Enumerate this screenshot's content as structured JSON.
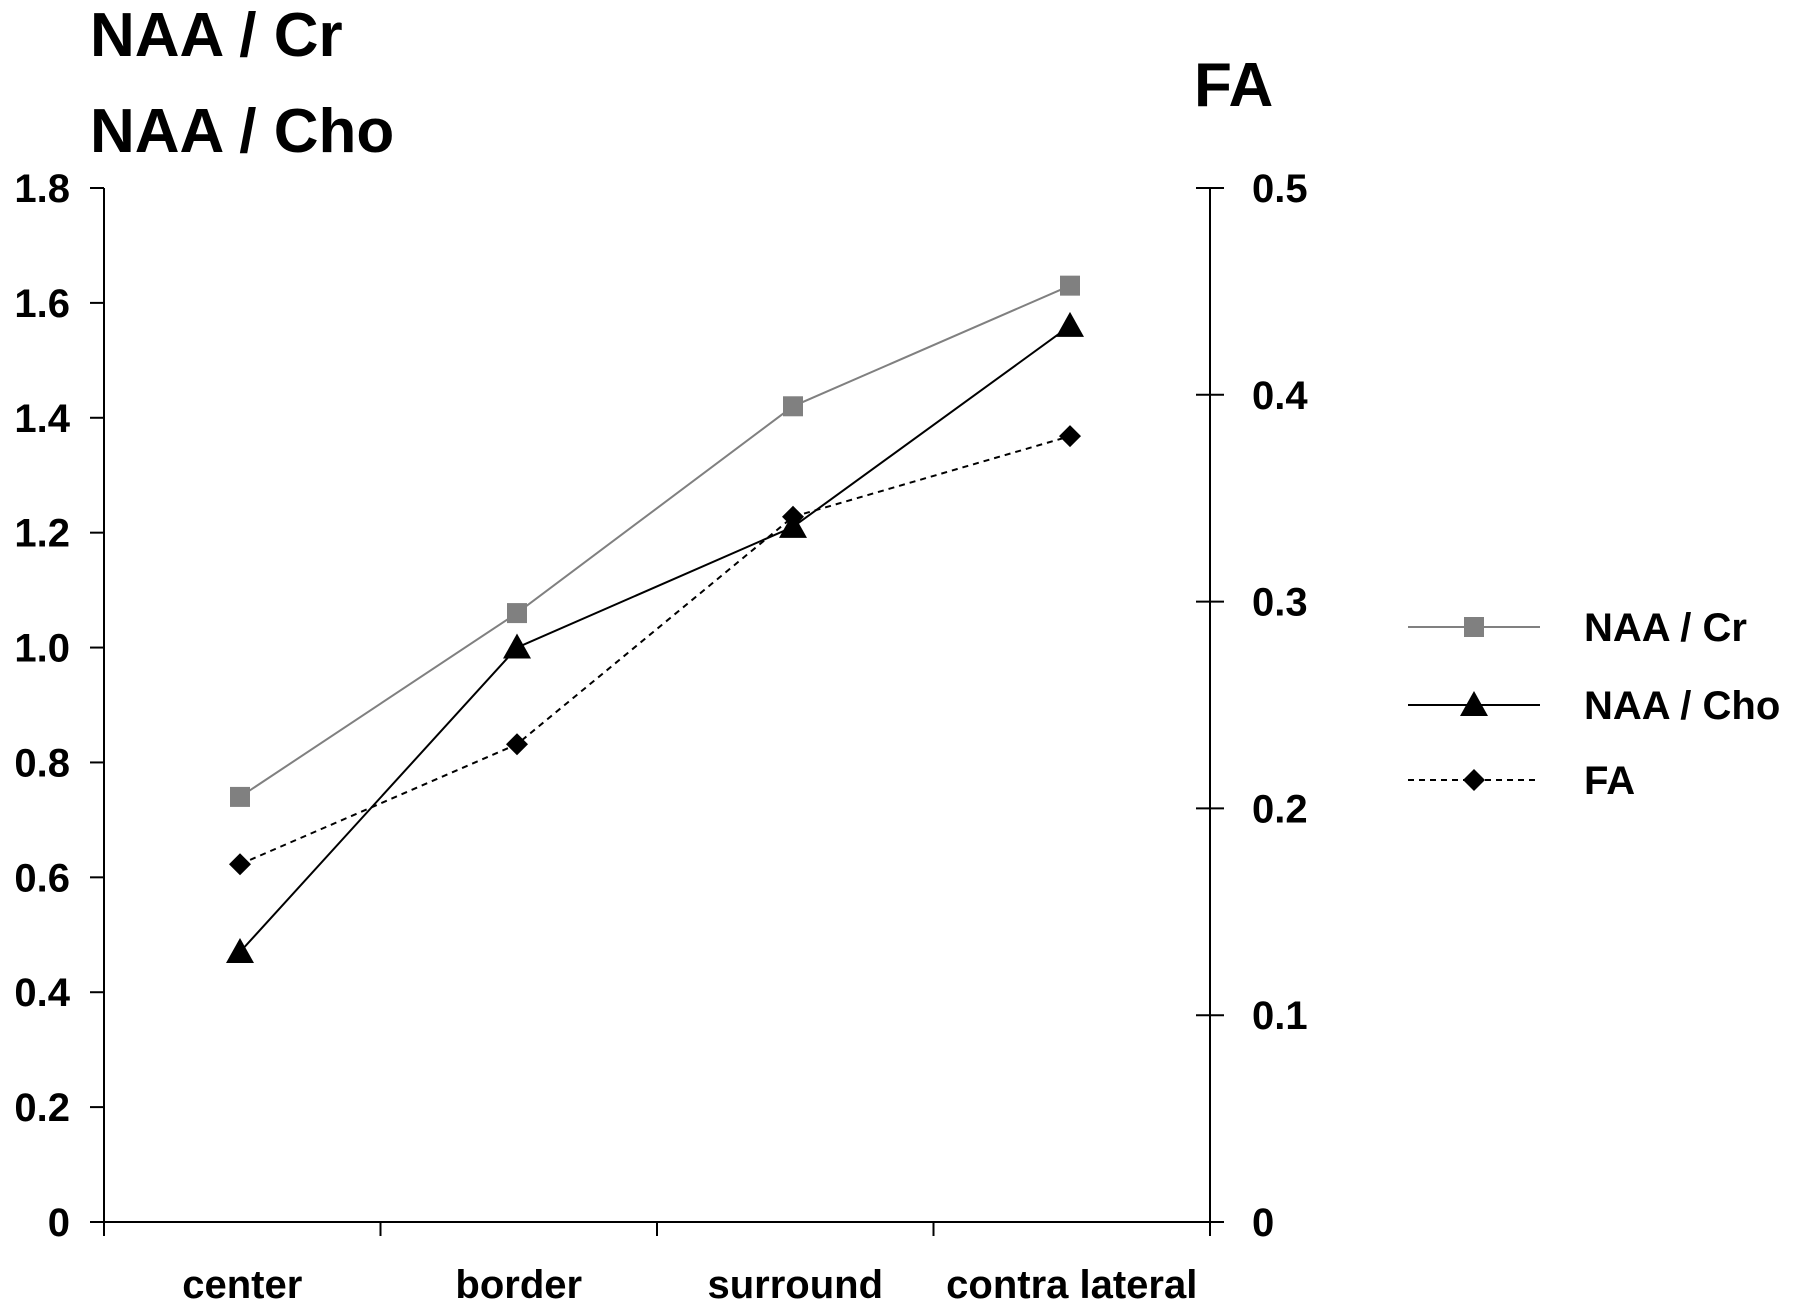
{
  "chart_data": {
    "type": "line",
    "left_axis_titles": [
      "NAA / Cr",
      "NAA / Cho"
    ],
    "right_axis_title": "FA",
    "categories": [
      "center",
      "border",
      "surround",
      "contra lateral"
    ],
    "left_axis": {
      "range": [
        0,
        1.8
      ],
      "ticks": [
        "0",
        "0.2",
        "0.4",
        "0.6",
        "0.8",
        "1.0",
        "1.2",
        "1.4",
        "1.6",
        "1.8"
      ]
    },
    "right_axis": {
      "range": [
        0,
        0.5
      ],
      "ticks": [
        "0",
        "0.1",
        "0.2",
        "0.3",
        "0.4",
        "0.5"
      ]
    },
    "grid": false,
    "legend_position": "right",
    "series": [
      {
        "name": "NAA / Cr",
        "axis": "left",
        "marker": "square",
        "line": "solid",
        "color": "#808080",
        "values": [
          0.74,
          1.06,
          1.42,
          1.63
        ]
      },
      {
        "name": "NAA / Cho",
        "axis": "left",
        "marker": "triangle",
        "line": "solid",
        "color": "#000000",
        "values": [
          0.47,
          1.0,
          1.21,
          1.56
        ]
      },
      {
        "name": "FA",
        "axis": "right",
        "marker": "diamond",
        "line": "dashed",
        "color": "#000000",
        "values": [
          0.173,
          0.231,
          0.341,
          0.38
        ]
      }
    ]
  }
}
